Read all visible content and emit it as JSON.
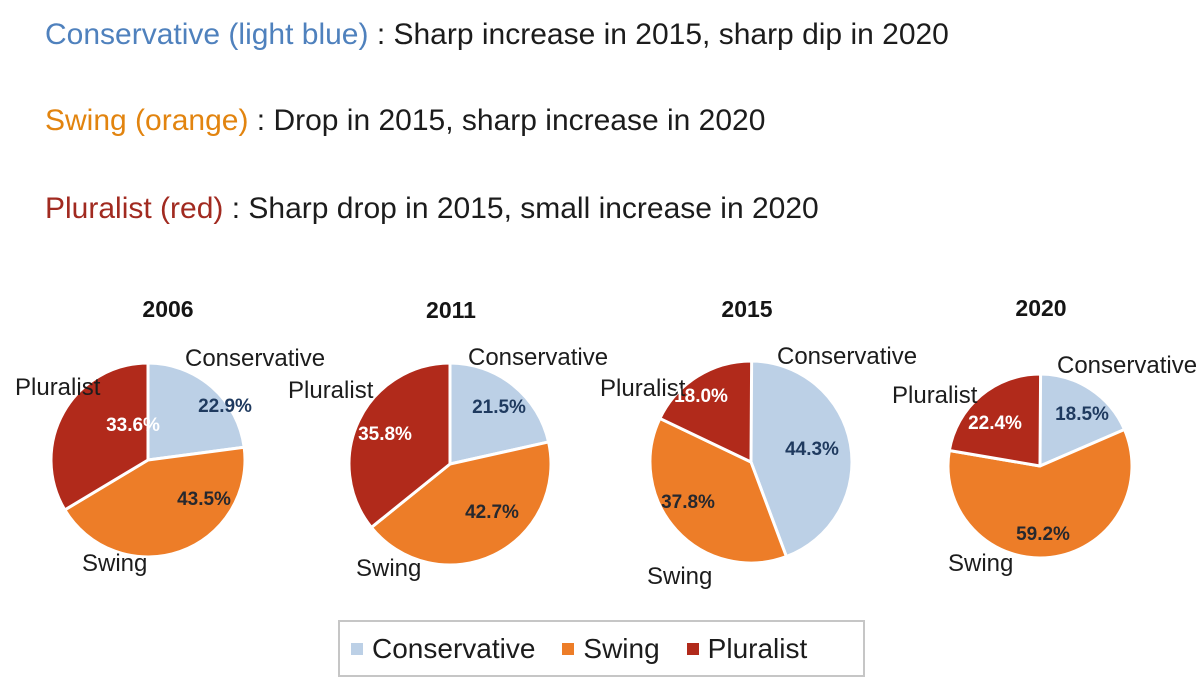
{
  "header": {
    "lines": [
      {
        "term": "Conservative (light blue)",
        "rest": " : Sharp increase in 2015, sharp dip in 2020",
        "color": "#4f81bd"
      },
      {
        "term": "Swing (orange)",
        "rest": " : Drop in 2015, sharp increase in 2020",
        "color": "#e2840f"
      },
      {
        "term": "Pluralist (red)",
        "rest": " : Sharp drop in 2015, small increase in 2020",
        "color": "#a12a20"
      }
    ]
  },
  "colors": {
    "conservative": "#bcd0e6",
    "swing": "#ed7d28",
    "pluralist": "#b12a1b",
    "value_on_conservative": "#1f3a5f",
    "value_on_swing": "#26282e",
    "value_on_pluralist": "#ffffff",
    "slice_gap": "#ffffff"
  },
  "legend": {
    "items": [
      {
        "label": "Conservative",
        "color": "#bcd0e6"
      },
      {
        "label": "Swing",
        "color": "#ed7d28"
      },
      {
        "label": "Pluralist",
        "color": "#b12a1b"
      }
    ]
  },
  "chart_data": {
    "type": "pie",
    "categories": [
      "Conservative",
      "Swing",
      "Pluralist"
    ],
    "legend_position": "bottom",
    "start_angle_deg": 0,
    "direction": "clockwise",
    "pies": [
      {
        "title": "2006",
        "values": [
          22.9,
          43.5,
          33.6
        ],
        "value_labels": [
          "22.9%",
          "43.5%",
          "33.6%"
        ]
      },
      {
        "title": "2011",
        "values": [
          21.5,
          42.7,
          35.8
        ],
        "value_labels": [
          "21.5%",
          "42.7%",
          "35.8%"
        ]
      },
      {
        "title": "2015",
        "values": [
          44.3,
          37.8,
          18.0
        ],
        "value_labels": [
          "44.3%",
          "37.8%",
          "18.0%"
        ]
      },
      {
        "title": "2020",
        "values": [
          18.5,
          59.2,
          22.4
        ],
        "value_labels": [
          "18.5%",
          "59.2%",
          "22.4%"
        ]
      }
    ],
    "annotations": [
      "Conservative (light blue) : Sharp increase in 2015, sharp dip in 2020",
      "Swing (orange) : Drop in 2015, sharp increase in 2020",
      "Pluralist (red) : Sharp drop in 2015, small increase in 2020"
    ]
  }
}
